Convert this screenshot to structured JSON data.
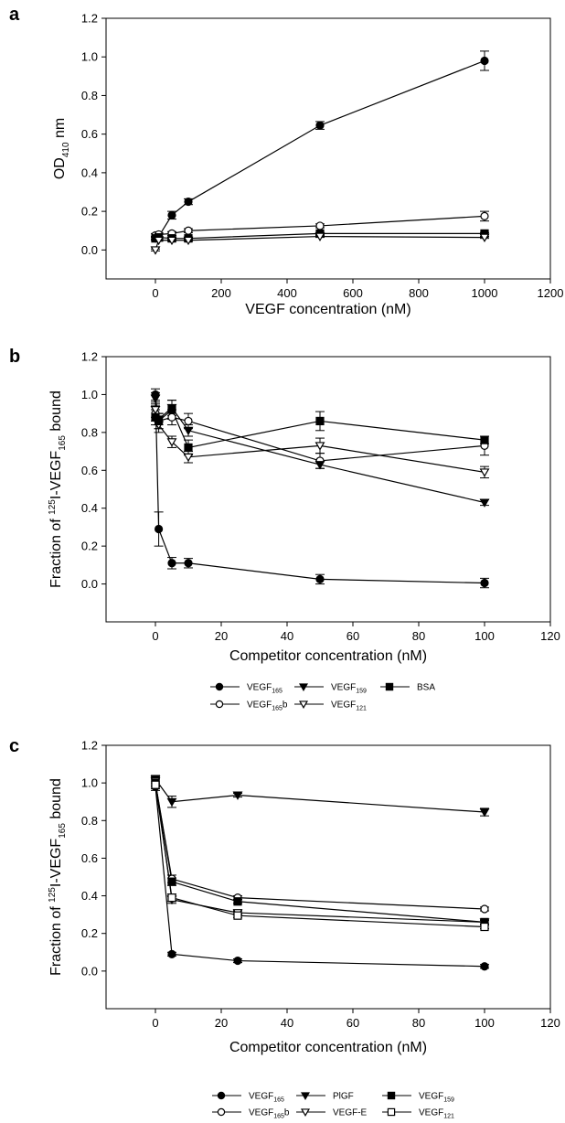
{
  "chart_data": [
    {
      "panel": "a",
      "type": "line",
      "xlabel": "VEGF concentration (nM)",
      "ylabel": "OD410 nm",
      "ylabel_main": "OD",
      "ylabel_sub": "410",
      "ylabel_tail": " nm",
      "xlim": [
        -150,
        1200
      ],
      "ylim": [
        -0.15,
        1.2
      ],
      "xticks": [
        0,
        200,
        400,
        600,
        800,
        1000,
        1200
      ],
      "yticks": [
        0.0,
        0.2,
        0.4,
        0.6,
        0.8,
        1.0,
        1.2
      ],
      "ytick_labels": [
        "0.0",
        "0.2",
        "0.4",
        "0.6",
        "0.8",
        "1.0",
        "1.2"
      ],
      "series": [
        {
          "marker": "circle-filled",
          "x": [
            0,
            10,
            50,
            100,
            500,
            1000
          ],
          "y": [
            0.06,
            0.07,
            0.18,
            0.25,
            0.645,
            0.98
          ],
          "err": [
            0.01,
            0.015,
            0.02,
            0.015,
            0.02,
            0.05
          ]
        },
        {
          "marker": "circle-open",
          "x": [
            0,
            10,
            50,
            100,
            500,
            1000
          ],
          "y": [
            0.075,
            0.08,
            0.085,
            0.1,
            0.125,
            0.175
          ],
          "err": [
            0.01,
            0.01,
            0.01,
            0.01,
            0.01,
            0.025
          ]
        },
        {
          "marker": "square-filled",
          "x": [
            0,
            10,
            50,
            100,
            500,
            1000
          ],
          "y": [
            0.06,
            0.065,
            0.06,
            0.06,
            0.085,
            0.085
          ],
          "err": [
            0.005,
            0.005,
            0.005,
            0.005,
            0.005,
            0.005
          ]
        },
        {
          "marker": "triangle-down-open",
          "x": [
            0,
            10,
            50,
            100,
            500,
            1000
          ],
          "y": [
            0.0,
            0.05,
            0.05,
            0.05,
            0.07,
            0.065
          ],
          "err": [
            0.005,
            0.005,
            0.005,
            0.005,
            0.005,
            0.005
          ]
        }
      ]
    },
    {
      "panel": "b",
      "type": "line",
      "xlabel": "Competitor concentration (nM)",
      "ylabel": "Fraction of 125I-VEGF165 bound",
      "ylabel_pre": "Fraction of ",
      "ylabel_sup": "125",
      "ylabel_mid": "I-VEGF",
      "ylabel_sub": "165",
      "ylabel_tail": " bound",
      "xlim": [
        -15,
        120
      ],
      "ylim": [
        -0.2,
        1.2
      ],
      "xticks": [
        0,
        20,
        40,
        60,
        80,
        100,
        120
      ],
      "yticks": [
        0.0,
        0.2,
        0.4,
        0.6,
        0.8,
        1.0,
        1.2
      ],
      "ytick_labels": [
        "0.0",
        "0.2",
        "0.4",
        "0.6",
        "0.8",
        "1.0",
        "1.2"
      ],
      "series": [
        {
          "marker": "circle-filled",
          "x": [
            0,
            1,
            5,
            10,
            50,
            100
          ],
          "y": [
            1.0,
            0.29,
            0.11,
            0.11,
            0.025,
            0.005
          ],
          "err": [
            0.03,
            0.09,
            0.03,
            0.025,
            0.025,
            0.025
          ]
        },
        {
          "marker": "circle-open",
          "x": [
            0,
            1,
            5,
            10,
            50,
            100
          ],
          "y": [
            0.9,
            0.86,
            0.88,
            0.86,
            0.65,
            0.73
          ],
          "err": [
            0.04,
            0.04,
            0.04,
            0.04,
            0.04,
            0.05
          ]
        },
        {
          "marker": "triangle-down-filled",
          "x": [
            0,
            1,
            5,
            10,
            50,
            100
          ],
          "y": [
            0.98,
            0.87,
            0.93,
            0.81,
            0.63,
            0.43
          ],
          "err": [
            0.03,
            0.03,
            0.04,
            0.03,
            0.02,
            0.015
          ]
        },
        {
          "marker": "triangle-down-open",
          "x": [
            0,
            1,
            5,
            10,
            50,
            100
          ],
          "y": [
            0.92,
            0.84,
            0.75,
            0.67,
            0.73,
            0.59
          ],
          "err": [
            0.04,
            0.04,
            0.03,
            0.03,
            0.04,
            0.03
          ]
        },
        {
          "marker": "square-filled",
          "x": [
            0,
            1,
            5,
            10,
            50,
            100
          ],
          "y": [
            0.88,
            0.86,
            0.92,
            0.72,
            0.86,
            0.76
          ],
          "err": [
            0.04,
            0.04,
            0.05,
            0.04,
            0.05,
            0.02
          ]
        }
      ],
      "legend": [
        {
          "marker": "circle-filled",
          "main": "VEGF",
          "sub": "165",
          "tail": ""
        },
        {
          "marker": "triangle-down-filled",
          "main": "VEGF",
          "sub": "159",
          "tail": ""
        },
        {
          "marker": "square-filled",
          "main": "BSA",
          "sub": "",
          "tail": ""
        },
        {
          "marker": "circle-open",
          "main": "VEGF",
          "sub": "165",
          "tail": "b"
        },
        {
          "marker": "triangle-down-open",
          "main": "VEGF",
          "sub": "121",
          "tail": ""
        }
      ]
    },
    {
      "panel": "c",
      "type": "line",
      "xlabel": "Competitor concentration (nM)",
      "ylabel": "Fraction of 125I-VEGF165 bound",
      "ylabel_pre": "Fraction of ",
      "ylabel_sup": "125",
      "ylabel_mid": "I-VEGF",
      "ylabel_sub": "165",
      "ylabel_tail": " bound",
      "xlim": [
        -15,
        120
      ],
      "ylim": [
        -0.2,
        1.2
      ],
      "xticks": [
        0,
        20,
        40,
        60,
        80,
        100,
        120
      ],
      "yticks": [
        0.0,
        0.2,
        0.4,
        0.6,
        0.8,
        1.0,
        1.2
      ],
      "ytick_labels": [
        "0.0",
        "0.2",
        "0.4",
        "0.6",
        "0.8",
        "1.0",
        "1.2"
      ],
      "series": [
        {
          "marker": "circle-filled",
          "x": [
            0,
            5,
            25,
            100
          ],
          "y": [
            0.98,
            0.09,
            0.055,
            0.025
          ],
          "err": [
            0.02,
            0.01,
            0.01,
            0.01
          ]
        },
        {
          "marker": "circle-open",
          "x": [
            0,
            5,
            25,
            100
          ],
          "y": [
            1.0,
            0.49,
            0.39,
            0.33
          ],
          "err": [
            0.02,
            0.02,
            0.01,
            0.01
          ]
        },
        {
          "marker": "triangle-down-filled",
          "x": [
            0,
            5,
            25,
            100
          ],
          "y": [
            1.02,
            0.9,
            0.935,
            0.845
          ],
          "err": [
            0.02,
            0.03,
            0.01,
            0.02
          ]
        },
        {
          "marker": "triangle-down-open",
          "x": [
            0,
            5,
            25,
            100
          ],
          "y": [
            1.01,
            0.38,
            0.31,
            0.26
          ],
          "err": [
            0.02,
            0.02,
            0.01,
            0.01
          ]
        },
        {
          "marker": "square-filled",
          "x": [
            0,
            5,
            25,
            100
          ],
          "y": [
            1.0,
            0.475,
            0.37,
            0.26
          ],
          "err": [
            0.02,
            0.02,
            0.01,
            0.01
          ]
        },
        {
          "marker": "square-open",
          "x": [
            0,
            5,
            25,
            100
          ],
          "y": [
            0.99,
            0.39,
            0.295,
            0.235
          ],
          "err": [
            0.02,
            0.02,
            0.01,
            0.01
          ]
        }
      ],
      "legend": [
        {
          "marker": "circle-filled",
          "main": "VEGF",
          "sub": "165",
          "tail": ""
        },
        {
          "marker": "triangle-down-filled",
          "main": "PlGF",
          "sub": "",
          "tail": ""
        },
        {
          "marker": "square-filled",
          "main": "VEGF",
          "sub": "159",
          "tail": ""
        },
        {
          "marker": "circle-open",
          "main": "VEGF",
          "sub": "165",
          "tail": "b"
        },
        {
          "marker": "triangle-down-open",
          "main": "VEGF-E",
          "sub": "",
          "tail": ""
        },
        {
          "marker": "square-open",
          "main": "VEGF",
          "sub": "121",
          "tail": ""
        }
      ]
    }
  ]
}
